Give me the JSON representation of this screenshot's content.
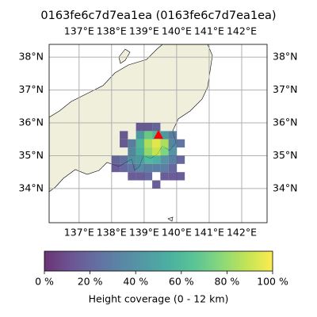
{
  "chart_data": {
    "type": "heatmap",
    "title": "0163fe6c7d7ea1ea (0163fe6c7d7ea1ea)",
    "colormap": "viridis",
    "xlim": [
      136.08,
      142.78
    ],
    "ylim": [
      32.96,
      38.39
    ],
    "xticks": [
      {
        "value": 137,
        "label": "137°E"
      },
      {
        "value": 138,
        "label": "138°E"
      },
      {
        "value": 139,
        "label": "139°E"
      },
      {
        "value": 140,
        "label": "140°E"
      },
      {
        "value": 141,
        "label": "141°E"
      },
      {
        "value": 142,
        "label": "142°E"
      }
    ],
    "yticks": [
      {
        "value": 34,
        "label": "34°N"
      },
      {
        "value": 35,
        "label": "35°N"
      },
      {
        "value": 36,
        "label": "36°N"
      },
      {
        "value": 37,
        "label": "37°N"
      },
      {
        "value": 38,
        "label": "38°N"
      }
    ],
    "grid": true,
    "cell_size": 0.25,
    "cells": [
      [
        138.75,
        35.75,
        15
      ],
      [
        139.0,
        35.75,
        15
      ],
      [
        139.25,
        35.75,
        20
      ],
      [
        138.25,
        35.5,
        15
      ],
      [
        138.75,
        35.5,
        45
      ],
      [
        139.0,
        35.5,
        70
      ],
      [
        139.25,
        35.5,
        60
      ],
      [
        139.5,
        35.5,
        45
      ],
      [
        139.75,
        35.5,
        30
      ],
      [
        138.25,
        35.25,
        15
      ],
      [
        138.5,
        35.25,
        30
      ],
      [
        138.75,
        35.25,
        60
      ],
      [
        139.0,
        35.25,
        85
      ],
      [
        139.25,
        35.25,
        95
      ],
      [
        139.5,
        35.25,
        85
      ],
      [
        139.75,
        35.25,
        35
      ],
      [
        140.0,
        35.25,
        25
      ],
      [
        138.5,
        35.0,
        35
      ],
      [
        138.75,
        35.0,
        55
      ],
      [
        139.0,
        35.0,
        80
      ],
      [
        139.25,
        35.0,
        90
      ],
      [
        139.5,
        35.0,
        75
      ],
      [
        139.75,
        35.0,
        40
      ],
      [
        138.0,
        34.75,
        20
      ],
      [
        138.25,
        34.75,
        25
      ],
      [
        138.5,
        34.75,
        40
      ],
      [
        138.75,
        34.75,
        45
      ],
      [
        139.0,
        34.75,
        60
      ],
      [
        139.25,
        34.75,
        55
      ],
      [
        139.5,
        34.75,
        40
      ],
      [
        139.75,
        34.75,
        30
      ],
      [
        140.0,
        34.75,
        20
      ],
      [
        138.0,
        34.5,
        15
      ],
      [
        138.25,
        34.5,
        20
      ],
      [
        138.5,
        34.5,
        25
      ],
      [
        138.75,
        34.5,
        35
      ],
      [
        139.0,
        34.5,
        30
      ],
      [
        139.25,
        34.5,
        30
      ],
      [
        139.5,
        34.5,
        30
      ],
      [
        139.75,
        34.5,
        20
      ],
      [
        138.5,
        34.25,
        15
      ],
      [
        138.75,
        34.25,
        15
      ],
      [
        139.0,
        34.25,
        20
      ],
      [
        139.5,
        34.25,
        15
      ],
      [
        139.75,
        34.25,
        15
      ],
      [
        140.0,
        34.25,
        15
      ],
      [
        139.25,
        34.0,
        15
      ]
    ],
    "marker": {
      "lon": 139.44,
      "lat": 35.64,
      "color": "#ff0000"
    },
    "colorbar": {
      "label": "Height coverage (0 - 12 km)",
      "lim": [
        0,
        100
      ],
      "ticks": [
        {
          "value": 0,
          "label": "0 %"
        },
        {
          "value": 20,
          "label": "20 %"
        },
        {
          "value": 40,
          "label": "40 %"
        },
        {
          "value": 60,
          "label": "60 %"
        },
        {
          "value": 80,
          "label": "80 %"
        },
        {
          "value": 100,
          "label": "100 %"
        }
      ]
    }
  }
}
